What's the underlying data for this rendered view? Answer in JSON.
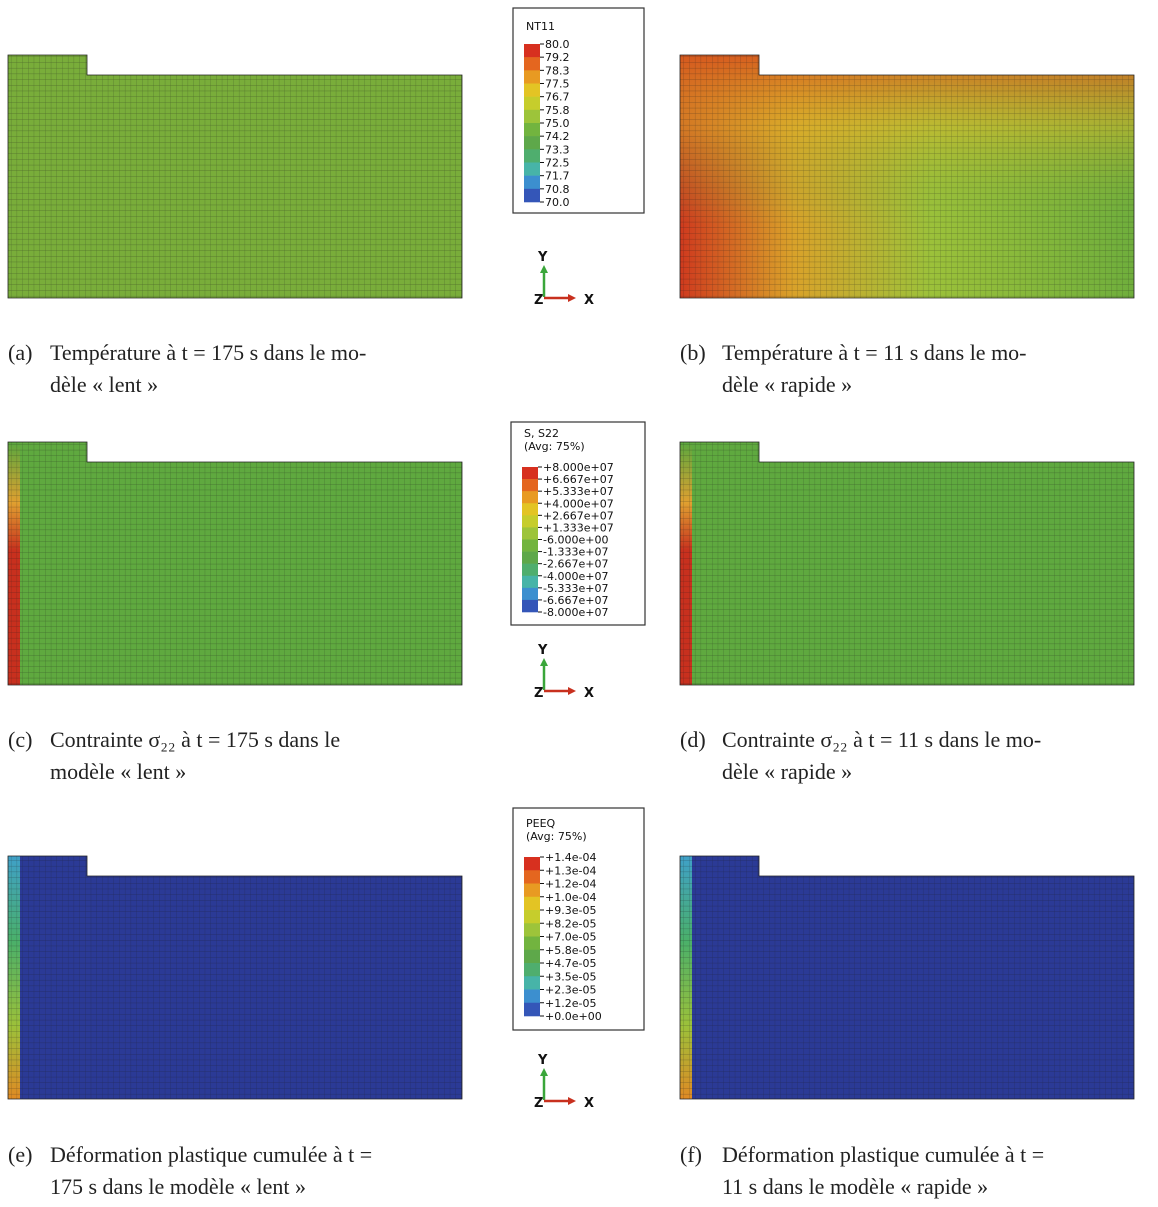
{
  "rows": [
    {
      "legend": {
        "title": [
          "NT11"
        ],
        "labels": [
          "80.0",
          "79.2",
          "78.3",
          "77.5",
          "76.7",
          "75.8",
          "75.0",
          "74.2",
          "73.3",
          "72.5",
          "71.7",
          "70.8",
          "70.0"
        ]
      },
      "triad": {
        "y": "Y",
        "z": "Z",
        "x": "X"
      },
      "panels": [
        {
          "label": "(a)",
          "caption": [
            "Température à t = 175 s dans le mo-",
            "dèle « lent »"
          ]
        },
        {
          "label": "(b)",
          "caption": [
            "Température à t = 11 s dans le mo-",
            "dèle « rapide »"
          ]
        }
      ]
    },
    {
      "legend": {
        "title": [
          "S, S22",
          "(Avg: 75%)"
        ],
        "labels": [
          "+8.000e+07",
          "+6.667e+07",
          "+5.333e+07",
          "+4.000e+07",
          "+2.667e+07",
          "+1.333e+07",
          "-6.000e+00",
          "-1.333e+07",
          "-2.667e+07",
          "-4.000e+07",
          "-5.333e+07",
          "-6.667e+07",
          "-8.000e+07"
        ]
      },
      "triad": {
        "y": "Y",
        "z": "Z",
        "x": "X"
      },
      "panels": [
        {
          "label": "(c)",
          "caption": [
            "Contrainte σ₂₂ à t = 175 s dans le",
            "modèle « lent »"
          ]
        },
        {
          "label": "(d)",
          "caption": [
            "Contrainte σ₂₂ à t = 11 s dans le mo-",
            "dèle « rapide »"
          ]
        }
      ]
    },
    {
      "legend": {
        "title": [
          "PEEQ",
          "(Avg: 75%)"
        ],
        "labels": [
          "+1.4e-04",
          "+1.3e-04",
          "+1.2e-04",
          "+1.0e-04",
          "+9.3e-05",
          "+8.2e-05",
          "+7.0e-05",
          "+5.8e-05",
          "+4.7e-05",
          "+3.5e-05",
          "+2.3e-05",
          "+1.2e-05",
          "+0.0e+00"
        ]
      },
      "triad": {
        "y": "Y",
        "z": "Z",
        "x": "X"
      },
      "panels": [
        {
          "label": "(e)",
          "caption": [
            "Déformation plastique cumulée à t =",
            "175 s dans le modèle « lent »"
          ]
        },
        {
          "label": "(f)",
          "caption": [
            "Déformation plastique cumulée à t =",
            "11 s dans le modèle « rapide »"
          ]
        }
      ]
    }
  ]
}
